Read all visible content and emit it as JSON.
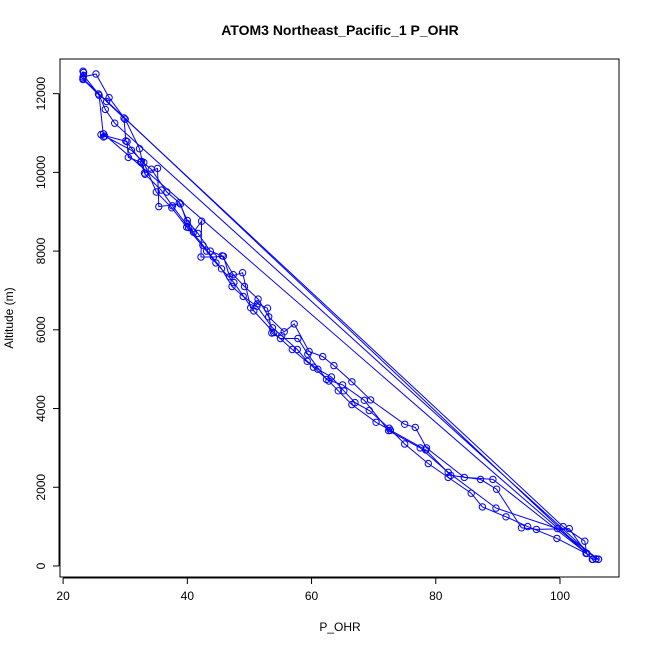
{
  "chart_data": {
    "type": "line",
    "title": "ATOM3 Northeast_Pacific_1 P_OHR",
    "xlabel": "P_OHR",
    "ylabel": "Altitude (m)",
    "xlim": [
      19.5,
      109.5
    ],
    "ylim": [
      -280,
      12880
    ],
    "xticks": [
      20,
      40,
      60,
      80,
      100
    ],
    "yticks": [
      0,
      2000,
      4000,
      6000,
      8000,
      10000,
      12000
    ],
    "grid": false,
    "legend": "none",
    "color": "#0000ff",
    "series": [
      {
        "values": [
          [
            23.2,
            12420
          ],
          [
            25.3,
            12500
          ],
          [
            27.4,
            11900
          ],
          [
            30.0,
            11350
          ],
          [
            32.3,
            10600
          ],
          [
            33.2,
            9950
          ],
          [
            35.8,
            9550
          ],
          [
            37.6,
            9150
          ],
          [
            40.2,
            8600
          ],
          [
            42.5,
            8150
          ],
          [
            45.5,
            7550
          ],
          [
            47.2,
            7100
          ],
          [
            49.0,
            6850
          ],
          [
            51.2,
            6600
          ],
          [
            53.7,
            6050
          ],
          [
            55.2,
            5850
          ],
          [
            57.7,
            5500
          ],
          [
            59.3,
            5200
          ],
          [
            61.0,
            5000
          ],
          [
            63.2,
            4800
          ],
          [
            65.2,
            4450
          ],
          [
            67.0,
            4150
          ],
          [
            69.3,
            3950
          ],
          [
            72.5,
            3500
          ],
          [
            75.0,
            3100
          ],
          [
            78.8,
            2600
          ],
          [
            82.0,
            2250
          ],
          [
            85.7,
            1850
          ],
          [
            87.5,
            1500
          ],
          [
            91.3,
            1250
          ],
          [
            94.8,
            1000
          ],
          [
            99.5,
            700
          ],
          [
            104.2,
            320
          ],
          [
            105.3,
            170
          ],
          [
            106.2,
            170
          ]
        ]
      },
      {
        "values": [
          [
            106.2,
            170
          ],
          [
            99.6,
            950
          ],
          [
            89.7,
            1470
          ],
          [
            82.0,
            2380
          ],
          [
            77.5,
            3000
          ],
          [
            72.4,
            3440
          ],
          [
            68.5,
            4210
          ],
          [
            65.0,
            4600
          ],
          [
            62.4,
            4740
          ],
          [
            59.4,
            5380
          ],
          [
            57.8,
            5780
          ],
          [
            55.0,
            5780
          ],
          [
            53.6,
            5920
          ],
          [
            52.9,
            6550
          ],
          [
            51.3,
            6660
          ],
          [
            50.2,
            6560
          ],
          [
            48.9,
            7450
          ],
          [
            46.8,
            7350
          ],
          [
            45.8,
            7870
          ],
          [
            44.2,
            7850
          ],
          [
            42.2,
            7850
          ],
          [
            42.3,
            8760
          ],
          [
            41.0,
            8480
          ],
          [
            40.0,
            8700
          ],
          [
            38.9,
            9200
          ],
          [
            35.4,
            9130
          ],
          [
            35.2,
            10100
          ],
          [
            33.1,
            9980
          ],
          [
            32.5,
            10260
          ],
          [
            30.5,
            10380
          ],
          [
            30.3,
            10780
          ],
          [
            26.1,
            10960
          ],
          [
            26.5,
            10900
          ],
          [
            25.8,
            11960
          ],
          [
            23.2,
            12370
          ]
        ]
      },
      {
        "values": [
          [
            23.2,
            12570
          ],
          [
            23.2,
            12360
          ],
          [
            100.5,
            1000
          ],
          [
            104.0,
            630
          ],
          [
            104.3,
            320
          ],
          [
            26.5,
            10980
          ],
          [
            26.7,
            10920
          ],
          [
            31.0,
            10560
          ],
          [
            33.0,
            10250
          ],
          [
            35.0,
            9500
          ],
          [
            37.5,
            9100
          ],
          [
            39.9,
            8610
          ],
          [
            43.1,
            8000
          ],
          [
            44.6,
            7700
          ],
          [
            47.5,
            7200
          ],
          [
            50.7,
            6480
          ],
          [
            53.9,
            5930
          ],
          [
            56.9,
            5500
          ],
          [
            60.3,
            5050
          ],
          [
            62.8,
            4700
          ],
          [
            64.3,
            4450
          ],
          [
            66.5,
            4100
          ],
          [
            70.4,
            3650
          ],
          [
            72.7,
            3450
          ],
          [
            78.4,
            2950
          ],
          [
            82.4,
            2300
          ],
          [
            87.2,
            2200
          ],
          [
            89.8,
            1950
          ],
          [
            93.8,
            970
          ],
          [
            96.2,
            930
          ],
          [
            101.5,
            950
          ],
          [
            104.3,
            320
          ],
          [
            105.2,
            170
          ],
          [
            105.8,
            180
          ]
        ]
      },
      {
        "values": [
          [
            105.8,
            180
          ],
          [
            28.3,
            11250
          ],
          [
            26.8,
            11600
          ],
          [
            25.7,
            11990
          ],
          [
            23.3,
            12460
          ],
          [
            23.3,
            12540
          ],
          [
            23.2,
            12380
          ],
          [
            104.2,
            330
          ],
          [
            89.2,
            2200
          ],
          [
            84.6,
            2250
          ],
          [
            78.5,
            3000
          ],
          [
            76.7,
            3520
          ],
          [
            75.0,
            3600
          ],
          [
            69.5,
            4220
          ],
          [
            66.5,
            4680
          ],
          [
            63.6,
            5090
          ],
          [
            61.8,
            5320
          ],
          [
            59.6,
            5450
          ],
          [
            57.2,
            6150
          ],
          [
            55.6,
            5950
          ],
          [
            53.1,
            6330
          ],
          [
            51.4,
            6780
          ],
          [
            49.2,
            7100
          ],
          [
            47.4,
            7400
          ],
          [
            45.6,
            7880
          ],
          [
            43.7,
            8000
          ],
          [
            41.7,
            8450
          ],
          [
            40.0,
            8780
          ],
          [
            38.7,
            9230
          ],
          [
            36.7,
            9500
          ],
          [
            34.2,
            10080
          ],
          [
            32.6,
            10280
          ],
          [
            30.1,
            10800
          ],
          [
            29.8,
            11380
          ],
          [
            27.0,
            11800
          ]
        ]
      }
    ]
  }
}
